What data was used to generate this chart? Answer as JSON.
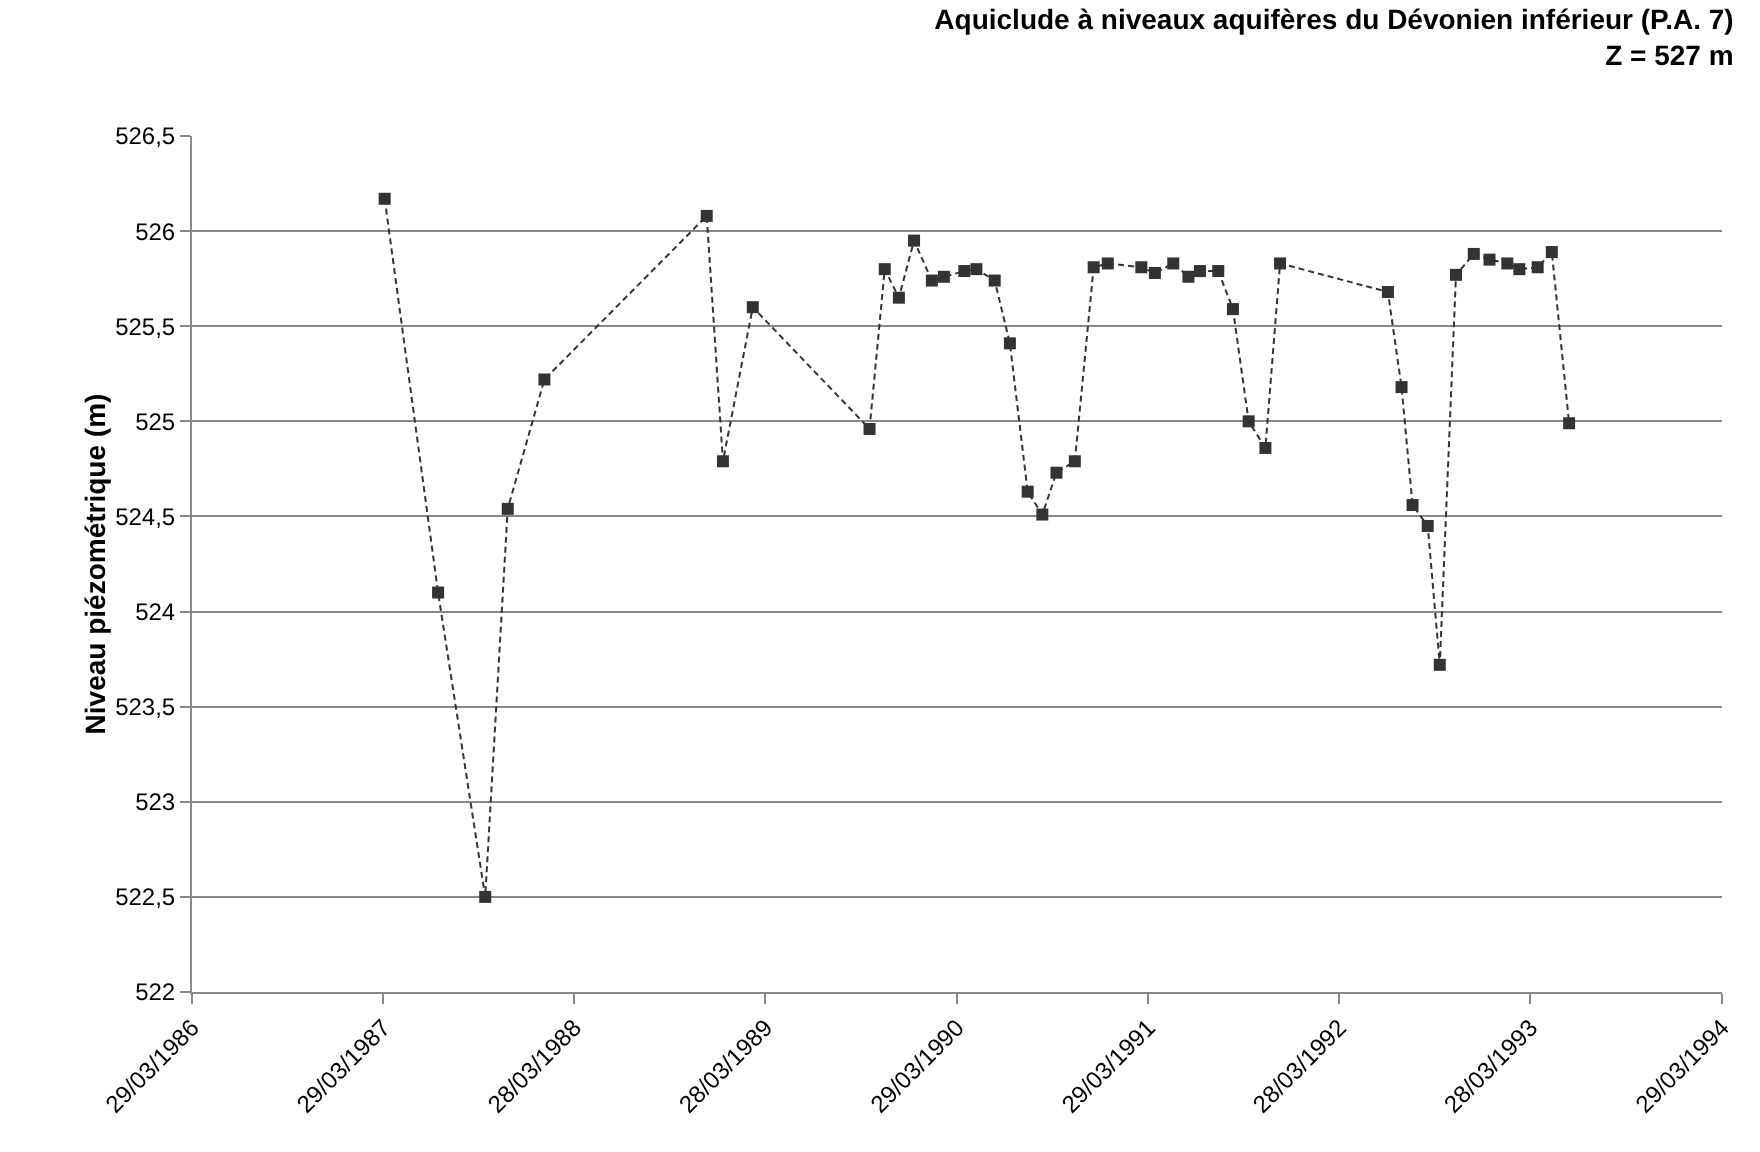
{
  "chart_data": {
    "type": "line",
    "title": "Aquiclude à niveaux aquifères du Dévonien inférieur (P.A. 7)",
    "subtitle": "Z = 527 m",
    "ylabel": "Niveau piézométrique (m)",
    "x": [
      "1987-04-01",
      "1987-07-12",
      "1987-10-10",
      "1987-11-22",
      "1988-01-31",
      "1988-12-06",
      "1989-01-06",
      "1989-03-04",
      "1989-10-13",
      "1989-11-11",
      "1989-12-08",
      "1990-01-06",
      "1990-02-09",
      "1990-03-04",
      "1990-04-12",
      "1990-05-05",
      "1990-06-09",
      "1990-07-08",
      "1990-08-11",
      "1990-09-08",
      "1990-10-05",
      "1990-11-09",
      "1990-12-15",
      "1991-01-11",
      "1991-03-16",
      "1991-04-11",
      "1991-05-16",
      "1991-06-14",
      "1991-07-06",
      "1991-08-10",
      "1991-09-07",
      "1991-10-07",
      "1991-11-08",
      "1991-12-06",
      "1992-06-29",
      "1992-07-25",
      "1992-08-15",
      "1992-09-13",
      "1992-10-06",
      "1992-11-06",
      "1992-12-10",
      "1993-01-09",
      "1993-02-12",
      "1993-03-07",
      "1993-04-11",
      "1993-05-08",
      "1993-06-10"
    ],
    "series": [
      {
        "color": "#333333",
        "values": [
          526.17,
          524.1,
          522.5,
          524.54,
          525.22,
          526.08,
          524.79,
          525.6,
          524.96,
          525.8,
          525.65,
          525.95,
          525.74,
          525.76,
          525.79,
          525.8,
          525.74,
          525.41,
          524.63,
          524.51,
          524.73,
          524.79,
          525.81,
          525.83,
          525.81,
          525.78,
          525.83,
          525.76,
          525.79,
          525.79,
          525.59,
          525.0,
          524.86,
          525.83,
          525.68,
          525.18,
          524.56,
          524.45,
          523.72,
          525.77,
          525.88,
          525.85,
          525.83,
          525.8,
          525.81,
          525.89,
          524.99
        ]
      }
    ],
    "xlim": [
      "1986-03-29",
      "1994-03-29"
    ],
    "xticks": [
      {
        "value": "1986-03-29",
        "label": "29/03/1986"
      },
      {
        "value": "1987-03-29",
        "label": "29/03/1987"
      },
      {
        "value": "1988-03-28",
        "label": "28/03/1988"
      },
      {
        "value": "1989-03-28",
        "label": "28/03/1989"
      },
      {
        "value": "1990-03-29",
        "label": "29/03/1990"
      },
      {
        "value": "1991-03-29",
        "label": "29/03/1991"
      },
      {
        "value": "1992-03-28",
        "label": "28/03/1992"
      },
      {
        "value": "1993-03-28",
        "label": "28/03/1993"
      },
      {
        "value": "1994-03-29",
        "label": "29/03/1994"
      }
    ],
    "ylim": [
      522,
      526.5
    ],
    "yticks": [
      522,
      {
        "value": 522.5,
        "label": "522,5"
      },
      523,
      {
        "value": 523.5,
        "label": "523,5"
      },
      524,
      {
        "value": 524.5,
        "label": "524,5"
      },
      525,
      {
        "value": 525.5,
        "label": "525,5"
      },
      526,
      {
        "value": 526.5,
        "label": "526,5"
      }
    ],
    "grid": "y",
    "marker": "square",
    "line_style": "dashed"
  }
}
